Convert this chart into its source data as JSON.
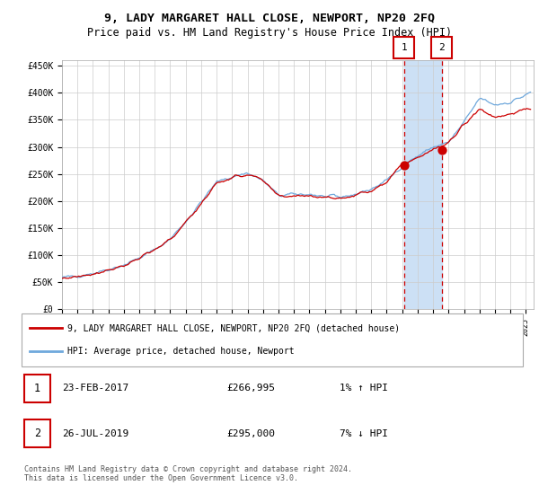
{
  "title": "9, LADY MARGARET HALL CLOSE, NEWPORT, NP20 2FQ",
  "subtitle": "Price paid vs. HM Land Registry's House Price Index (HPI)",
  "hpi_label": "HPI: Average price, detached house, Newport",
  "property_label": "9, LADY MARGARET HALL CLOSE, NEWPORT, NP20 2FQ (detached house)",
  "sale1_date": "23-FEB-2017",
  "sale1_price": 266995,
  "sale1_hpi": "1% ↑ HPI",
  "sale1_year": 2017.12,
  "sale2_date": "26-JUL-2019",
  "sale2_price": 295000,
  "sale2_hpi": "7% ↓ HPI",
  "sale2_year": 2019.56,
  "ylim": [
    0,
    460000
  ],
  "xlim_start": 1995.0,
  "xlim_end": 2025.5,
  "line_color_hpi": "#6fa8dc",
  "line_color_property": "#cc0000",
  "dot_color": "#cc0000",
  "vline_color": "#cc0000",
  "shade_color": "#cce0f5",
  "grid_color": "#cccccc",
  "background_color": "#ffffff",
  "footer_text": "Contains HM Land Registry data © Crown copyright and database right 2024.\nThis data is licensed under the Open Government Licence v3.0.",
  "yticks": [
    0,
    50000,
    100000,
    150000,
    200000,
    250000,
    300000,
    350000,
    400000,
    450000
  ],
  "ytick_labels": [
    "£0",
    "£50K",
    "£100K",
    "£150K",
    "£200K",
    "£250K",
    "£300K",
    "£350K",
    "£400K",
    "£450K"
  ],
  "hpi_key_years": [
    1995,
    1996,
    1997,
    1998,
    1999,
    2000,
    2001,
    2002,
    2003,
    2004,
    2005,
    2006,
    2007,
    2008,
    2009,
    2010,
    2011,
    2012,
    2013,
    2014,
    2015,
    2016,
    2017,
    2018,
    2019,
    2020,
    2021,
    2022,
    2023,
    2024,
    2025.3
  ],
  "hpi_key_vals": [
    58000,
    62000,
    67000,
    74000,
    82000,
    95000,
    110000,
    130000,
    162000,
    198000,
    235000,
    245000,
    252000,
    238000,
    210000,
    212000,
    213000,
    208000,
    207000,
    213000,
    222000,
    238000,
    265000,
    283000,
    300000,
    308000,
    345000,
    390000,
    378000,
    383000,
    400000
  ],
  "prop_key_years": [
    1995,
    1996,
    1997,
    1998,
    1999,
    2000,
    2001,
    2002,
    2003,
    2004,
    2005,
    2006,
    2007,
    2008,
    2009,
    2010,
    2011,
    2012,
    2013,
    2014,
    2015,
    2016,
    2017,
    2018,
    2019,
    2020,
    2021,
    2022,
    2023,
    2024,
    2025.3
  ],
  "prop_key_vals": [
    57000,
    61000,
    66000,
    73000,
    81000,
    94000,
    109000,
    129000,
    160000,
    196000,
    233000,
    243000,
    250000,
    237000,
    208000,
    210000,
    211000,
    207000,
    205000,
    211000,
    220000,
    237000,
    266995,
    282000,
    295000,
    306000,
    343000,
    370000,
    355000,
    362000,
    370000
  ]
}
